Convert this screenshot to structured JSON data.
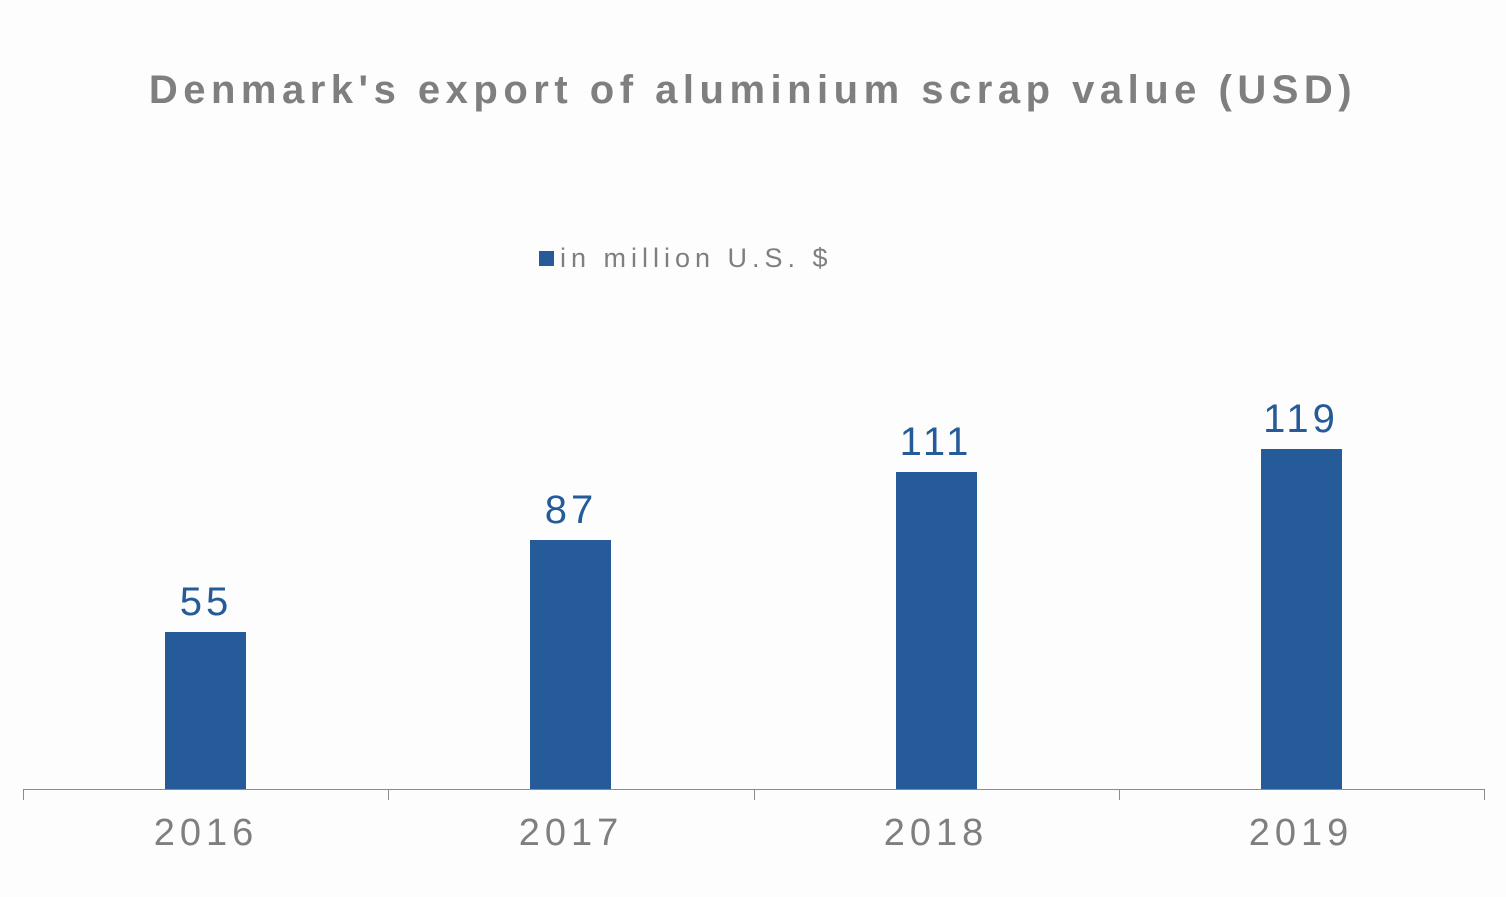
{
  "chart_data": {
    "type": "bar",
    "title": "Denmark's export of aluminium scrap value (USD)",
    "categories": [
      "2016",
      "2017",
      "2018",
      "2019"
    ],
    "series": [
      {
        "name": "in million U.S. $",
        "values": [
          55,
          87,
          111,
          119
        ],
        "color": "#245b98"
      }
    ],
    "xlabel": "",
    "ylabel": "",
    "ylim": [
      0,
      170
    ],
    "grid": false,
    "legend_position": "top",
    "data_labels": [
      "55",
      "87",
      "111",
      "119"
    ]
  },
  "colors": {
    "bar": "#245b98",
    "text": "#7f7f7f",
    "axis": "#8c8c8c",
    "background": "#fdfdfd"
  }
}
